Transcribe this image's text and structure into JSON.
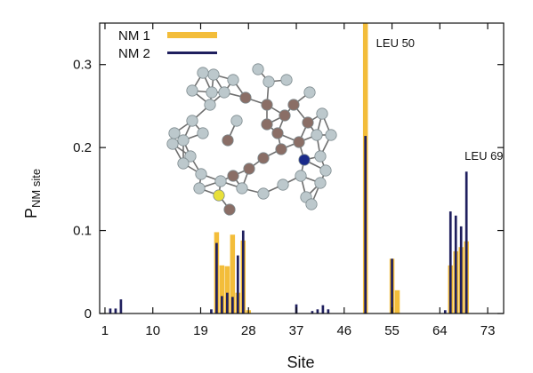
{
  "chart_data": {
    "type": "bar",
    "xlabel": "Site",
    "ylabel_main": "P",
    "ylabel_sub": "NM site",
    "xlim": [
      0,
      76
    ],
    "ylim": [
      0,
      0.35
    ],
    "xticks": [
      1,
      10,
      19,
      28,
      37,
      46,
      55,
      64,
      73
    ],
    "yticks": [
      0,
      0.1,
      0.2,
      0.3
    ],
    "ytick_labels": [
      "0",
      "0.1",
      "0.2",
      "0.3"
    ],
    "legend_position": "top-left",
    "series": [
      {
        "name": "NM 1",
        "color": "#f3bd3a",
        "points": [
          {
            "x": 22,
            "y": 0.098
          },
          {
            "x": 23,
            "y": 0.058
          },
          {
            "x": 24,
            "y": 0.057
          },
          {
            "x": 25,
            "y": 0.095
          },
          {
            "x": 26,
            "y": 0.025
          },
          {
            "x": 27,
            "y": 0.088
          },
          {
            "x": 28,
            "y": 0.004
          },
          {
            "x": 50,
            "y": 0.35
          },
          {
            "x": 55,
            "y": 0.066
          },
          {
            "x": 56,
            "y": 0.028
          },
          {
            "x": 66,
            "y": 0.058
          },
          {
            "x": 67,
            "y": 0.075
          },
          {
            "x": 68,
            "y": 0.08
          },
          {
            "x": 69,
            "y": 0.087
          }
        ]
      },
      {
        "name": "NM 2",
        "color": "#1f1f5e",
        "points": [
          {
            "x": 2,
            "y": 0.006
          },
          {
            "x": 3,
            "y": 0.006
          },
          {
            "x": 4,
            "y": 0.017
          },
          {
            "x": 21,
            "y": 0.005
          },
          {
            "x": 22,
            "y": 0.085
          },
          {
            "x": 23,
            "y": 0.021
          },
          {
            "x": 24,
            "y": 0.025
          },
          {
            "x": 25,
            "y": 0.02
          },
          {
            "x": 26,
            "y": 0.07
          },
          {
            "x": 27,
            "y": 0.1
          },
          {
            "x": 37,
            "y": 0.011
          },
          {
            "x": 40,
            "y": 0.003
          },
          {
            "x": 41,
            "y": 0.005
          },
          {
            "x": 42,
            "y": 0.01
          },
          {
            "x": 43,
            "y": 0.005
          },
          {
            "x": 50,
            "y": 0.214
          },
          {
            "x": 55,
            "y": 0.066
          },
          {
            "x": 65,
            "y": 0.004
          },
          {
            "x": 66,
            "y": 0.123
          },
          {
            "x": 67,
            "y": 0.118
          },
          {
            "x": 68,
            "y": 0.105
          },
          {
            "x": 69,
            "y": 0.171
          }
        ]
      }
    ],
    "annotations": [
      {
        "text": "LEU 50",
        "x": 50,
        "y": 0.35
      },
      {
        "text": "LEU 69",
        "x": 69,
        "y": 0.171
      }
    ]
  },
  "inset": {
    "icon": "molecule-ball-and-stick-icon",
    "colors": {
      "main": "#bcc8cc",
      "backbone": "#8a6e66",
      "sulfur": "#e8e03a",
      "nitrogen": "#1a2a8a",
      "bond": "#6f6f6f"
    }
  }
}
